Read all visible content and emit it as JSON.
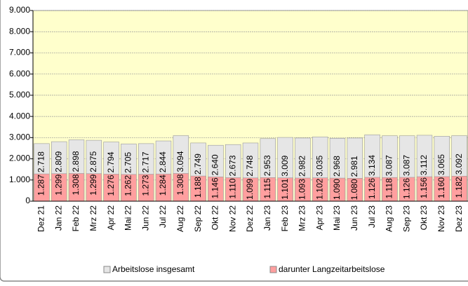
{
  "chart_data": {
    "type": "bar",
    "categories": [
      "Dez 21",
      "Jan 22",
      "Feb 22",
      "Mrz 22",
      "Apr 22",
      "Mai 22",
      "Jun 22",
      "Jul 22",
      "Aug 22",
      "Sep 22",
      "Okt 22",
      "Nov 22",
      "Dez 22",
      "Jan 23",
      "Feb 23",
      "Mrz 23",
      "Apr 23",
      "Mai 23",
      "Jun 23",
      "Jul 23",
      "Aug 23",
      "Sep 23",
      "Okt 23",
      "Nov 23",
      "Dez 23"
    ],
    "series": [
      {
        "name": "Arbeitslose insgesamt",
        "color": "#e6e6e6",
        "values": [
          2718,
          2809,
          2898,
          2875,
          2794,
          2705,
          2717,
          2844,
          3094,
          2749,
          2640,
          2673,
          2748,
          2953,
          3009,
          2982,
          3035,
          2968,
          2981,
          3134,
          3087,
          3087,
          3112,
          3065,
          3092
        ],
        "value_labels": [
          "2.718",
          "2.809",
          "2.898",
          "2.875",
          "2.794",
          "2.705",
          "2.717",
          "2.844",
          "3.094",
          "2.749",
          "2.640",
          "2.673",
          "2.748",
          "2.953",
          "3.009",
          "2.982",
          "3.035",
          "2.968",
          "2.981",
          "3.134",
          "3.087",
          "3.087",
          "3.112",
          "3.065",
          "3.092"
        ]
      },
      {
        "name": "darunter Langzeitarbeitslose",
        "color": "#ff9f9f",
        "values": [
          1287,
          1299,
          1308,
          1299,
          1276,
          1262,
          1273,
          1284,
          1308,
          1188,
          1146,
          1110,
          1099,
          1115,
          1101,
          1093,
          1102,
          1090,
          1080,
          1126,
          1118,
          1126,
          1156,
          1160,
          1182
        ],
        "value_labels": [
          "1.287",
          "1.299",
          "1.308",
          "1.299",
          "1.276",
          "1.262",
          "1.273",
          "1.284",
          "1.308",
          "1.188",
          "1.146",
          "1.110",
          "1.099",
          "1.115",
          "1.101",
          "1.093",
          "1.102",
          "1.090",
          "1.080",
          "1.126",
          "1.118",
          "1.126",
          "1.156",
          "1.160",
          "1.182"
        ]
      }
    ],
    "ylim": [
      0,
      9000
    ],
    "yticks": [
      0,
      {
        "value": 1000,
        "label": "1.000"
      },
      {
        "value": 2000,
        "label": "2.000"
      },
      {
        "value": 3000,
        "label": "3.000"
      },
      {
        "value": 4000,
        "label": "4.000"
      },
      {
        "value": 5000,
        "label": "5.000"
      },
      {
        "value": 6000,
        "label": "6.000"
      },
      {
        "value": 7000,
        "label": "7.000"
      },
      {
        "value": 8000,
        "label": "8.000"
      },
      {
        "value": 9000,
        "label": "9.000"
      }
    ],
    "grid": true,
    "plot_background": "#ffffcc"
  }
}
